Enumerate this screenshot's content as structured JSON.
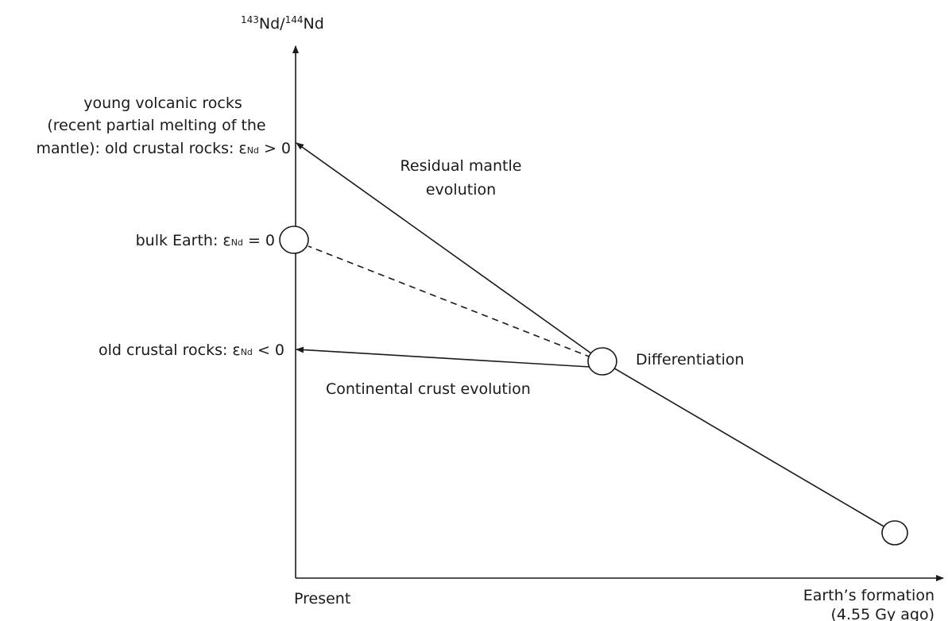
{
  "y_axis_label": {
    "mass1": "143",
    "el1": "Nd/",
    "mass2": "144",
    "el2": "Nd"
  },
  "young_rocks": {
    "line1": "young volcanic rocks",
    "line2": "(recent partial melting of the",
    "line3": {
      "before": "mantle): old crustal rocks: ε",
      "sub": "Nd",
      "after": " > 0"
    }
  },
  "bulk_earth": {
    "before": "bulk Earth: ε",
    "sub": "Nd",
    "after": " = 0"
  },
  "old_crust": {
    "before": "old crustal rocks: ε",
    "sub": "Nd",
    "after": " < 0"
  },
  "residual_mantle": {
    "line1": "Residual mantle",
    "line2": "evolution"
  },
  "continental_crust": "Continental crust evolution",
  "differentiation": "Differentiation",
  "present": "Present",
  "formation": {
    "line1": "Earth’s formation",
    "line2": "(4.55 Gy ago)"
  }
}
